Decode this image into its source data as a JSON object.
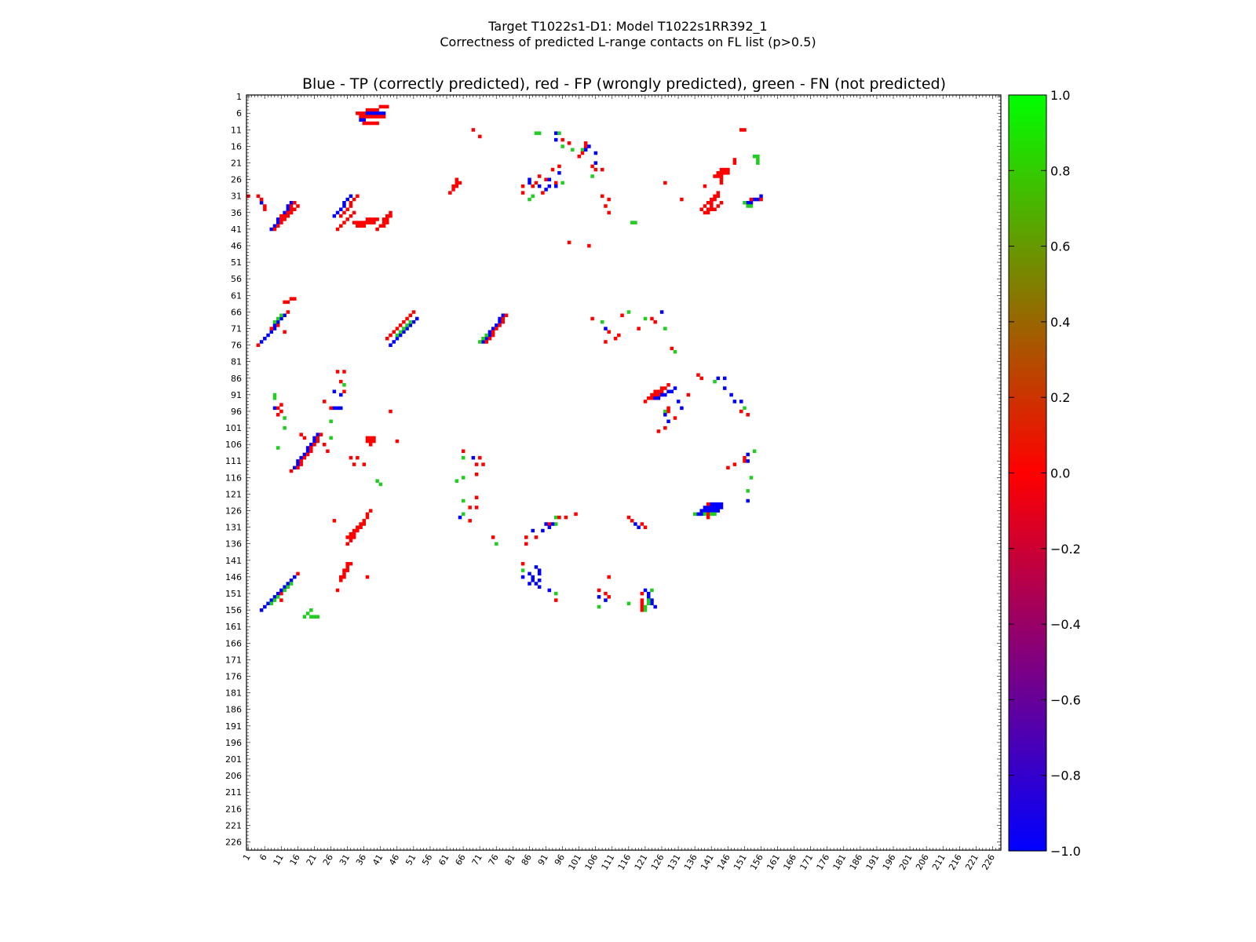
{
  "chart_data": {
    "type": "heatmap",
    "suptitle_line1": "Target T1022s1-D1: Model T1022s1RR392_1",
    "suptitle_line2": "Correctness of predicted L-range contacts on FL list (p>0.5)",
    "title": "Blue - TP (correctly predicted), red - FP (wrongly predicted), green - FN (not predicted)",
    "matrix_size": 228,
    "axis_min": 1,
    "axis_max": 228,
    "tick_labels": [
      "1",
      "6",
      "11",
      "16",
      "21",
      "26",
      "31",
      "36",
      "41",
      "46",
      "51",
      "56",
      "61",
      "66",
      "71",
      "76",
      "81",
      "86",
      "91",
      "96",
      "101",
      "106",
      "111",
      "116",
      "121",
      "126",
      "131",
      "136",
      "141",
      "146",
      "151",
      "156",
      "161",
      "166",
      "171",
      "176",
      "181",
      "186",
      "191",
      "196",
      "201",
      "206",
      "211",
      "216",
      "221",
      "226"
    ],
    "colorbar": {
      "min": -1.0,
      "max": 1.0,
      "ticks": [
        "−1.0",
        "−0.8",
        "−0.6",
        "−0.4",
        "−0.2",
        "0.0",
        "0.2",
        "0.4",
        "0.6",
        "0.8",
        "1.0"
      ],
      "stops": [
        "#0000ff",
        "#ff0000",
        "#00ff00"
      ]
    },
    "colors": {
      "TP": "#0000ff",
      "FP": "#ff0000",
      "FN": "#22cc22"
    },
    "segments": [
      [
        "FP",
        43,
        4,
        34,
        6
      ],
      [
        "TP",
        35,
        6,
        42,
        6
      ],
      [
        "FP",
        35,
        7,
        42,
        7
      ],
      [
        "TP",
        35,
        8,
        36,
        8
      ],
      [
        "FP",
        36,
        9,
        40,
        9
      ],
      [
        "FP",
        103,
        15,
        101,
        19
      ],
      [
        "TP",
        104,
        16,
        102,
        18
      ],
      [
        "TP",
        14,
        33,
        8,
        41
      ],
      [
        "FP",
        15,
        33,
        9,
        41
      ],
      [
        "FP",
        16,
        34,
        10,
        40
      ],
      [
        "TP",
        32,
        31,
        27,
        37
      ],
      [
        "FP",
        34,
        31,
        29,
        37
      ],
      [
        "FP",
        33,
        36,
        28,
        41
      ],
      [
        "FP",
        15,
        62,
        12,
        63
      ],
      [
        "TP",
        12,
        67,
        5,
        75
      ],
      [
        "FP",
        13,
        66,
        6,
        74
      ],
      [
        "FP",
        11,
        68,
        4,
        76
      ],
      [
        "FN",
        11,
        67,
        9,
        69
      ],
      [
        "TP",
        78,
        67,
        72,
        75
      ],
      [
        "FP",
        79,
        67,
        73,
        75
      ],
      [
        "FN",
        77,
        69,
        71,
        75
      ],
      [
        "TP",
        52,
        68,
        44,
        76
      ],
      [
        "FP",
        51,
        66,
        43,
        74
      ],
      [
        "FN",
        50,
        69,
        46,
        73
      ],
      [
        "TP",
        22,
        103,
        15,
        113
      ],
      [
        "FP",
        23,
        103,
        16,
        113
      ],
      [
        "FP",
        21,
        105,
        14,
        114
      ],
      [
        "FP",
        22,
        105,
        15,
        113
      ],
      [
        "FP",
        38,
        126,
        32,
        134
      ],
      [
        "FP",
        37,
        128,
        31,
        136
      ],
      [
        "FP",
        36,
        129,
        31,
        134
      ],
      [
        "TP",
        15,
        146,
        5,
        156
      ],
      [
        "FP",
        16,
        145,
        6,
        155
      ],
      [
        "FN",
        14,
        148,
        8,
        154
      ],
      [
        "FP",
        31,
        142,
        29,
        146
      ],
      [
        "FP",
        32,
        142,
        29,
        147
      ],
      [
        "TP",
        121,
        150,
        124,
        155
      ],
      [
        "TP",
        122,
        151,
        123,
        154
      ],
      [
        "FP",
        120,
        153,
        120,
        156
      ],
      [
        "FN",
        122,
        153,
        121,
        156
      ],
      [
        "TP",
        88,
        143,
        89,
        145
      ],
      [
        "TP",
        86,
        145,
        88,
        148
      ],
      [
        "FP",
        37,
        104,
        39,
        104
      ],
      [
        "FP",
        37,
        105,
        39,
        105
      ],
      [
        "FP",
        38,
        106,
        38,
        106
      ],
      [
        "TP",
        141,
        124,
        144,
        124
      ],
      [
        "TP",
        139,
        125,
        144,
        125
      ],
      [
        "TP",
        138,
        126,
        143,
        126
      ],
      [
        "FP",
        140,
        124,
        140,
        128
      ],
      [
        "TP",
        137,
        127,
        138,
        127
      ],
      [
        "FN",
        136,
        127,
        142,
        127
      ],
      [
        "FP",
        123,
        91,
        128,
        88
      ],
      [
        "FP",
        121,
        93,
        126,
        90
      ],
      [
        "TP",
        124,
        92,
        130,
        89
      ],
      [
        "FP",
        143,
        24,
        146,
        23
      ],
      [
        "FP",
        142,
        25,
        146,
        24
      ],
      [
        "FP",
        144,
        23,
        144,
        27
      ],
      [
        "FP",
        138,
        35,
        143,
        30
      ],
      [
        "FP",
        139,
        36,
        143,
        31
      ],
      [
        "FP",
        140,
        36,
        144,
        33
      ],
      [
        "FP",
        65,
        27,
        62,
        30
      ],
      [
        "FP",
        64,
        26,
        63,
        28
      ],
      [
        "FP",
        116,
        128,
        117,
        129
      ],
      [
        "TP",
        117,
        129,
        119,
        131
      ],
      [
        "FP",
        120,
        130,
        121,
        131
      ],
      [
        "TP",
        152,
        33,
        156,
        31
      ],
      [
        "FP",
        153,
        32,
        156,
        32
      ],
      [
        "FN",
        151,
        33,
        153,
        34
      ],
      [
        "FP",
        41,
        40,
        44,
        37
      ],
      [
        "FP",
        40,
        41,
        43,
        39
      ],
      [
        "FP",
        42,
        38,
        44,
        36
      ],
      [
        "FP",
        33,
        39,
        40,
        38
      ],
      [
        "FP",
        34,
        40,
        39,
        39
      ]
    ],
    "points": [
      [
        "FP",
        4,
        31
      ],
      [
        "TP",
        5,
        33
      ],
      [
        "FP",
        6,
        34
      ],
      [
        "FP",
        6,
        35
      ],
      [
        "FP",
        11,
        37
      ],
      [
        "FP",
        10,
        70
      ],
      [
        "FP",
        12,
        72
      ],
      [
        "FP",
        1,
        31
      ],
      [
        "FP",
        5,
        32
      ],
      [
        "TP",
        9,
        95
      ],
      [
        "FP",
        10,
        95
      ],
      [
        "FP",
        11,
        94
      ],
      [
        "FN",
        12,
        98
      ],
      [
        "FN",
        9,
        91
      ],
      [
        "FN",
        9,
        92
      ],
      [
        "FP",
        10,
        97
      ],
      [
        "FP",
        11,
        96
      ],
      [
        "FN",
        12,
        101
      ],
      [
        "FN",
        10,
        107
      ],
      [
        "FP",
        17,
        103
      ],
      [
        "FP",
        18,
        104
      ],
      [
        "FP",
        28,
        84
      ],
      [
        "FP",
        30,
        84
      ],
      [
        "FP",
        29,
        87
      ],
      [
        "FN",
        30,
        88
      ],
      [
        "TP",
        27,
        90
      ],
      [
        "TP",
        29,
        91
      ],
      [
        "TP",
        28,
        95
      ],
      [
        "FP",
        30,
        90
      ],
      [
        "FP",
        24,
        93
      ],
      [
        "FP",
        26,
        95
      ],
      [
        "TP",
        27,
        95
      ],
      [
        "TP",
        29,
        95
      ],
      [
        "FN",
        26,
        99
      ],
      [
        "FN",
        26,
        104
      ],
      [
        "FP",
        24,
        106
      ],
      [
        "FP",
        25,
        108
      ],
      [
        "FP",
        32,
        110
      ],
      [
        "FP",
        33,
        112
      ],
      [
        "FP",
        36,
        112
      ],
      [
        "FP",
        34,
        110
      ],
      [
        "FN",
        40,
        117
      ],
      [
        "FN",
        41,
        118
      ],
      [
        "FP",
        44,
        96
      ],
      [
        "FP",
        46,
        105
      ],
      [
        "FP",
        27,
        129
      ],
      [
        "FP",
        31,
        134
      ],
      [
        "FP",
        37,
        146
      ],
      [
        "FP",
        28,
        150
      ],
      [
        "FP",
        11,
        151
      ],
      [
        "FP",
        11,
        153
      ],
      [
        "FN",
        20,
        156
      ],
      [
        "FN",
        20,
        158
      ],
      [
        "FN",
        21,
        158
      ],
      [
        "FN",
        22,
        158
      ],
      [
        "FN",
        18,
        158
      ],
      [
        "FN",
        19,
        157
      ],
      [
        "FP",
        66,
        108
      ],
      [
        "FN",
        66,
        110
      ],
      [
        "TP",
        69,
        110
      ],
      [
        "FP",
        71,
        110
      ],
      [
        "FP",
        72,
        112
      ],
      [
        "FP",
        70,
        112
      ],
      [
        "FP",
        70,
        115
      ],
      [
        "FN",
        64,
        117
      ],
      [
        "FN",
        66,
        116
      ],
      [
        "FP",
        70,
        122
      ],
      [
        "FN",
        66,
        123
      ],
      [
        "FP",
        68,
        125
      ],
      [
        "FP",
        70,
        125
      ],
      [
        "FN",
        66,
        127
      ],
      [
        "TP",
        65,
        128
      ],
      [
        "FP",
        68,
        129
      ],
      [
        "FP",
        75,
        134
      ],
      [
        "FN",
        76,
        136
      ],
      [
        "FP",
        85,
        134
      ],
      [
        "FP",
        85,
        136
      ],
      [
        "FP",
        88,
        134
      ],
      [
        "TP",
        87,
        132
      ],
      [
        "TP",
        90,
        132
      ],
      [
        "TP",
        91,
        130
      ],
      [
        "FP",
        92,
        130
      ],
      [
        "FN",
        94,
        130
      ],
      [
        "TP",
        93,
        130
      ],
      [
        "FN",
        94,
        128
      ],
      [
        "FP",
        95,
        128
      ],
      [
        "FP",
        97,
        128
      ],
      [
        "FP",
        100,
        127
      ],
      [
        "TP",
        92,
        131
      ],
      [
        "FP",
        84,
        142
      ],
      [
        "FN",
        84,
        144
      ],
      [
        "TP",
        84,
        146
      ],
      [
        "TP",
        86,
        148
      ],
      [
        "TP",
        89,
        149
      ],
      [
        "TP",
        92,
        150
      ],
      [
        "FN",
        94,
        151
      ],
      [
        "FP",
        94,
        153
      ],
      [
        "TP",
        89,
        147
      ],
      [
        "FP",
        69,
        11
      ],
      [
        "FP",
        71,
        13
      ],
      [
        "FN",
        88,
        12
      ],
      [
        "FN",
        89,
        12
      ],
      [
        "TP",
        94,
        12
      ],
      [
        "FN",
        95,
        12
      ],
      [
        "FP",
        96,
        14
      ],
      [
        "FP",
        98,
        15
      ],
      [
        "TP",
        94,
        14
      ],
      [
        "FN",
        96,
        16
      ],
      [
        "FN",
        99,
        17
      ],
      [
        "FN",
        102,
        17
      ],
      [
        "FP",
        95,
        22
      ],
      [
        "FP",
        93,
        23
      ],
      [
        "FP",
        89,
        25
      ],
      [
        "TP",
        86,
        26
      ],
      [
        "TP",
        86,
        27
      ],
      [
        "TP",
        89,
        28
      ],
      [
        "TP",
        91,
        29
      ],
      [
        "FP",
        90,
        30
      ],
      [
        "FP",
        88,
        27
      ],
      [
        "TP",
        92,
        28
      ],
      [
        "FN",
        96,
        27
      ],
      [
        "FP",
        91,
        26
      ],
      [
        "TP",
        92,
        26
      ],
      [
        "FP",
        94,
        27
      ],
      [
        "TP",
        94,
        28
      ],
      [
        "FN",
        87,
        31
      ],
      [
        "FP",
        84,
        30
      ],
      [
        "FP",
        84,
        28
      ],
      [
        "FN",
        86,
        32
      ],
      [
        "FP",
        87,
        28
      ],
      [
        "FP",
        98,
        45
      ],
      [
        "TP",
        95,
        24
      ],
      [
        "TP",
        106,
        18
      ],
      [
        "TP",
        106,
        21
      ],
      [
        "FP",
        105,
        22
      ],
      [
        "FN",
        105,
        25
      ],
      [
        "FP",
        108,
        23
      ],
      [
        "FP",
        106,
        23
      ],
      [
        "FP",
        108,
        31
      ],
      [
        "FP",
        110,
        32
      ],
      [
        "FP",
        109,
        34
      ],
      [
        "FP",
        110,
        36
      ],
      [
        "FN",
        117,
        39
      ],
      [
        "FN",
        118,
        39
      ],
      [
        "FP",
        104,
        46
      ],
      [
        "FP",
        110,
        72
      ],
      [
        "FP",
        109,
        75
      ],
      [
        "FP",
        112,
        74
      ],
      [
        "FP",
        113,
        73
      ],
      [
        "FN",
        108,
        69
      ],
      [
        "TP",
        109,
        71
      ],
      [
        "FP",
        105,
        68
      ],
      [
        "FN",
        116,
        66
      ],
      [
        "FP",
        114,
        67
      ],
      [
        "FP",
        119,
        71
      ],
      [
        "FN",
        121,
        68
      ],
      [
        "FP",
        123,
        68
      ],
      [
        "TP",
        126,
        66
      ],
      [
        "FN",
        127,
        71
      ],
      [
        "FP",
        124,
        69
      ],
      [
        "FP",
        129,
        77
      ],
      [
        "FN",
        130,
        78
      ],
      [
        "FP",
        127,
        27
      ],
      [
        "FP",
        132,
        32
      ],
      [
        "FP",
        139,
        28
      ],
      [
        "FP",
        150,
        11
      ],
      [
        "FP",
        151,
        11
      ],
      [
        "FN",
        154,
        19
      ],
      [
        "FN",
        155,
        20
      ],
      [
        "FN",
        155,
        21
      ],
      [
        "FN",
        155,
        19
      ],
      [
        "FP",
        148,
        20
      ],
      [
        "FP",
        148,
        21
      ],
      [
        "FN",
        127,
        96
      ],
      [
        "TP",
        127,
        97
      ],
      [
        "FP",
        128,
        96
      ],
      [
        "TP",
        128,
        99
      ],
      [
        "FP",
        128,
        95
      ],
      [
        "FP",
        130,
        98
      ],
      [
        "FP",
        127,
        101
      ],
      [
        "TP",
        131,
        93
      ],
      [
        "FP",
        134,
        91
      ],
      [
        "TP",
        132,
        95
      ],
      [
        "FP",
        125,
        102
      ],
      [
        "FP",
        137,
        85
      ],
      [
        "FP",
        138,
        86
      ],
      [
        "TP",
        145,
        86
      ],
      [
        "TP",
        145,
        89
      ],
      [
        "TP",
        147,
        91
      ],
      [
        "TP",
        148,
        93
      ],
      [
        "TP",
        150,
        93
      ],
      [
        "FN",
        151,
        95
      ],
      [
        "FP",
        152,
        97
      ],
      [
        "FP",
        150,
        96
      ],
      [
        "TP",
        143,
        86
      ],
      [
        "FN",
        142,
        87
      ],
      [
        "FP",
        148,
        112
      ],
      [
        "FP",
        151,
        110
      ],
      [
        "FP",
        151,
        111
      ],
      [
        "TP",
        152,
        109
      ],
      [
        "TP",
        152,
        111
      ],
      [
        "FN",
        154,
        108
      ],
      [
        "FN",
        153,
        116
      ],
      [
        "FP",
        146,
        113
      ],
      [
        "FN",
        152,
        120
      ],
      [
        "TP",
        152,
        123
      ],
      [
        "FP",
        110,
        146
      ],
      [
        "FP",
        107,
        150
      ],
      [
        "FP",
        109,
        151
      ],
      [
        "FP",
        110,
        152
      ],
      [
        "TP",
        107,
        152
      ],
      [
        "TP",
        109,
        153
      ],
      [
        "FN",
        116,
        154
      ],
      [
        "FN",
        107,
        155
      ],
      [
        "FN",
        123,
        150
      ],
      [
        "FP",
        120,
        151
      ]
    ]
  }
}
